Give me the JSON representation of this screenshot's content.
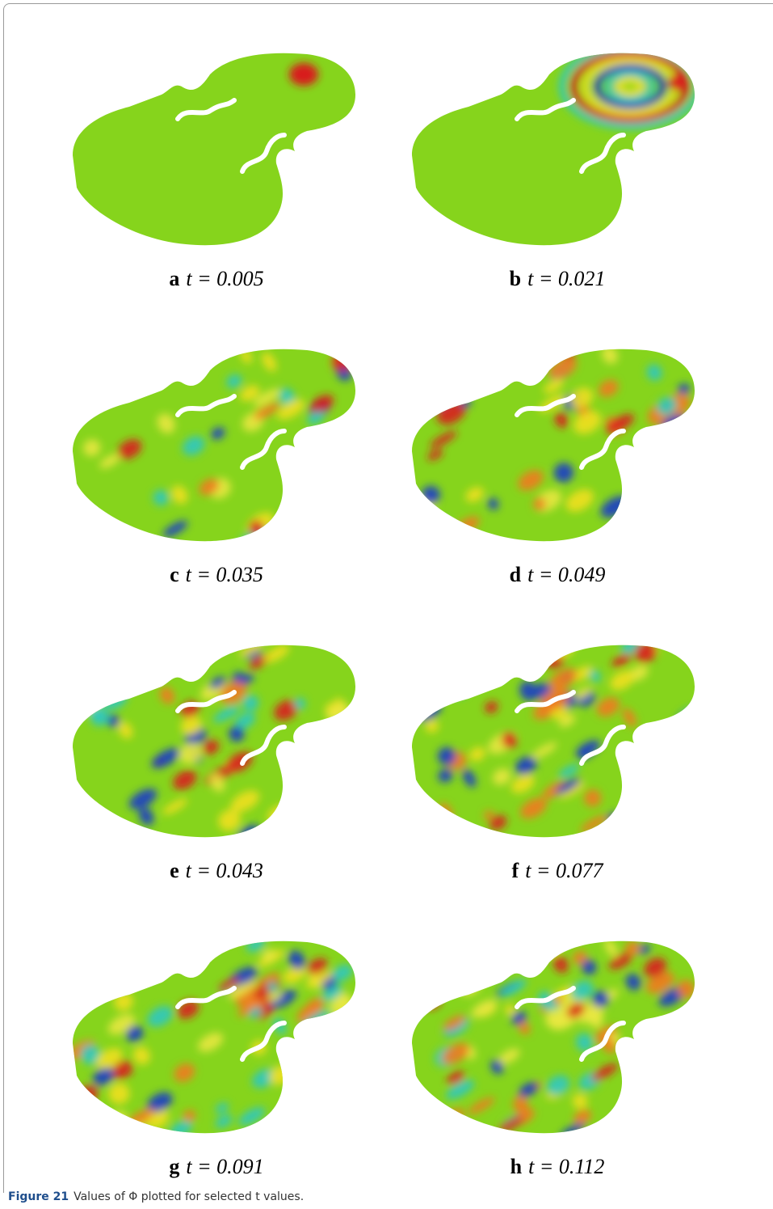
{
  "panels": [
    {
      "letter": "a",
      "equation": "t = 0.005"
    },
    {
      "letter": "b",
      "equation": "t = 0.021"
    },
    {
      "letter": "c",
      "equation": "t = 0.035"
    },
    {
      "letter": "d",
      "equation": "t = 0.049"
    },
    {
      "letter": "e",
      "equation": "t = 0.043"
    },
    {
      "letter": "f",
      "equation": "t = 0.077"
    },
    {
      "letter": "g",
      "equation": "t = 0.091"
    },
    {
      "letter": "h",
      "equation": "t = 0.112"
    }
  ],
  "caption": {
    "label": "Figure 21",
    "text": "Values of Φ plotted for selected t values."
  }
}
